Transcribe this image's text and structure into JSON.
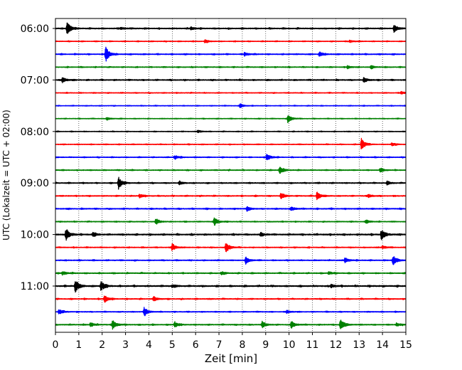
{
  "chart_data": {
    "type": "line",
    "subtype": "helicorder",
    "xlabel": "Zeit  [min]",
    "ylabel": "UTC (Lokalzeit = UTC + 02:00)",
    "xlim": [
      0,
      15
    ],
    "x_ticks": [
      0,
      1,
      2,
      3,
      4,
      5,
      6,
      7,
      8,
      9,
      10,
      11,
      12,
      13,
      14,
      15
    ],
    "x_tick_labels": [
      "0",
      "1",
      "2",
      "3",
      "4",
      "5",
      "6",
      "7",
      "8",
      "9",
      "10",
      "11",
      "12",
      "13",
      "14",
      "15"
    ],
    "y_tick_labels": [
      "06:00",
      "07:00",
      "08:00",
      "09:00",
      "10:00",
      "11:00"
    ],
    "row_minutes": 15,
    "grid": "vertical dotted at each minute",
    "colors": [
      "#000000",
      "#ff0000",
      "#0000ff",
      "#008000"
    ],
    "rows": [
      {
        "start": "06:00",
        "color": "#000000",
        "noise": 0.5,
        "events": [
          {
            "t": 0.5,
            "amp": 4.2
          },
          {
            "t": 2.8,
            "amp": 0.8
          },
          {
            "t": 5.8,
            "amp": 1.0
          },
          {
            "t": 14.5,
            "amp": 2.2
          }
        ]
      },
      {
        "start": "06:15",
        "color": "#ff0000",
        "noise": 0.35,
        "events": [
          {
            "t": 6.4,
            "amp": 1.0
          },
          {
            "t": 12.6,
            "amp": 0.8
          }
        ]
      },
      {
        "start": "06:30",
        "color": "#0000ff",
        "noise": 0.45,
        "events": [
          {
            "t": 2.15,
            "amp": 5.0
          },
          {
            "t": 8.1,
            "amp": 1.2
          },
          {
            "t": 11.3,
            "amp": 1.6
          }
        ]
      },
      {
        "start": "06:45",
        "color": "#008000",
        "noise": 0.4,
        "events": [
          {
            "t": 12.5,
            "amp": 1.0
          },
          {
            "t": 13.5,
            "amp": 1.0
          }
        ]
      },
      {
        "start": "07:00",
        "color": "#000000",
        "noise": 0.5,
        "events": [
          {
            "t": 0.3,
            "amp": 1.6
          },
          {
            "t": 13.2,
            "amp": 1.4
          }
        ]
      },
      {
        "start": "07:15",
        "color": "#ff0000",
        "noise": 0.35,
        "events": [
          {
            "t": 14.8,
            "amp": 0.8
          }
        ]
      },
      {
        "start": "07:30",
        "color": "#0000ff",
        "noise": 0.3,
        "events": [
          {
            "t": 7.9,
            "amp": 1.4
          }
        ]
      },
      {
        "start": "07:45",
        "color": "#008000",
        "noise": 0.3,
        "events": [
          {
            "t": 2.2,
            "amp": 0.8
          },
          {
            "t": 9.95,
            "amp": 2.6
          }
        ]
      },
      {
        "start": "08:00",
        "color": "#000000",
        "noise": 0.3,
        "events": [
          {
            "t": 6.1,
            "amp": 0.8
          }
        ]
      },
      {
        "start": "08:15",
        "color": "#ff0000",
        "noise": 0.35,
        "events": [
          {
            "t": 13.1,
            "amp": 4.0
          },
          {
            "t": 14.4,
            "amp": 1.0
          }
        ]
      },
      {
        "start": "08:30",
        "color": "#0000ff",
        "noise": 0.4,
        "events": [
          {
            "t": 5.1,
            "amp": 1.4
          },
          {
            "t": 9.05,
            "amp": 2.4
          }
        ]
      },
      {
        "start": "08:45",
        "color": "#008000",
        "noise": 0.4,
        "events": [
          {
            "t": 9.6,
            "amp": 2.6
          },
          {
            "t": 13.9,
            "amp": 1.4
          }
        ]
      },
      {
        "start": "09:00",
        "color": "#000000",
        "noise": 0.45,
        "events": [
          {
            "t": 2.7,
            "amp": 3.8
          },
          {
            "t": 5.3,
            "amp": 1.0
          },
          {
            "t": 14.2,
            "amp": 1.0
          }
        ]
      },
      {
        "start": "09:15",
        "color": "#ff0000",
        "noise": 0.45,
        "events": [
          {
            "t": 3.6,
            "amp": 1.2
          },
          {
            "t": 9.65,
            "amp": 2.0
          },
          {
            "t": 11.2,
            "amp": 2.6
          },
          {
            "t": 13.4,
            "amp": 1.0
          }
        ]
      },
      {
        "start": "09:30",
        "color": "#0000ff",
        "noise": 0.5,
        "events": [
          {
            "t": 8.2,
            "amp": 1.4
          },
          {
            "t": 10.1,
            "amp": 1.4
          }
        ]
      },
      {
        "start": "09:45",
        "color": "#008000",
        "noise": 0.4,
        "events": [
          {
            "t": 4.3,
            "amp": 2.0
          },
          {
            "t": 6.8,
            "amp": 2.6
          },
          {
            "t": 13.3,
            "amp": 1.2
          }
        ]
      },
      {
        "start": "10:00",
        "color": "#000000",
        "noise": 0.6,
        "events": [
          {
            "t": 0.45,
            "amp": 3.6
          },
          {
            "t": 1.6,
            "amp": 1.2
          },
          {
            "t": 8.8,
            "amp": 1.0
          },
          {
            "t": 13.95,
            "amp": 3.4
          }
        ]
      },
      {
        "start": "10:15",
        "color": "#ff0000",
        "noise": 0.4,
        "events": [
          {
            "t": 5.0,
            "amp": 2.4
          },
          {
            "t": 7.3,
            "amp": 3.6
          },
          {
            "t": 14.0,
            "amp": 1.0
          }
        ]
      },
      {
        "start": "10:30",
        "color": "#0000ff",
        "noise": 0.45,
        "events": [
          {
            "t": 8.15,
            "amp": 2.0
          },
          {
            "t": 12.4,
            "amp": 1.8
          },
          {
            "t": 14.45,
            "amp": 3.2
          }
        ]
      },
      {
        "start": "10:45",
        "color": "#008000",
        "noise": 0.45,
        "events": [
          {
            "t": 0.3,
            "amp": 1.2
          },
          {
            "t": 7.1,
            "amp": 1.0
          },
          {
            "t": 11.7,
            "amp": 1.0
          }
        ]
      },
      {
        "start": "11:00",
        "color": "#000000",
        "noise": 0.6,
        "events": [
          {
            "t": 0.85,
            "amp": 4.0
          },
          {
            "t": 1.95,
            "amp": 3.2
          },
          {
            "t": 5.0,
            "amp": 1.0
          },
          {
            "t": 11.8,
            "amp": 1.0
          }
        ]
      },
      {
        "start": "11:15",
        "color": "#ff0000",
        "noise": 0.45,
        "events": [
          {
            "t": 2.1,
            "amp": 2.6
          },
          {
            "t": 4.2,
            "amp": 1.4
          }
        ]
      },
      {
        "start": "11:30",
        "color": "#0000ff",
        "noise": 0.4,
        "events": [
          {
            "t": 0.15,
            "amp": 1.6
          },
          {
            "t": 3.8,
            "amp": 3.0
          },
          {
            "t": 9.9,
            "amp": 1.0
          }
        ]
      },
      {
        "start": "11:45",
        "color": "#008000",
        "noise": 0.45,
        "events": [
          {
            "t": 1.5,
            "amp": 1.4
          },
          {
            "t": 2.45,
            "amp": 2.8
          },
          {
            "t": 5.1,
            "amp": 2.0
          },
          {
            "t": 8.85,
            "amp": 2.0
          },
          {
            "t": 10.1,
            "amp": 2.2
          },
          {
            "t": 12.2,
            "amp": 3.8
          },
          {
            "t": 14.6,
            "amp": 1.2
          }
        ]
      }
    ]
  }
}
